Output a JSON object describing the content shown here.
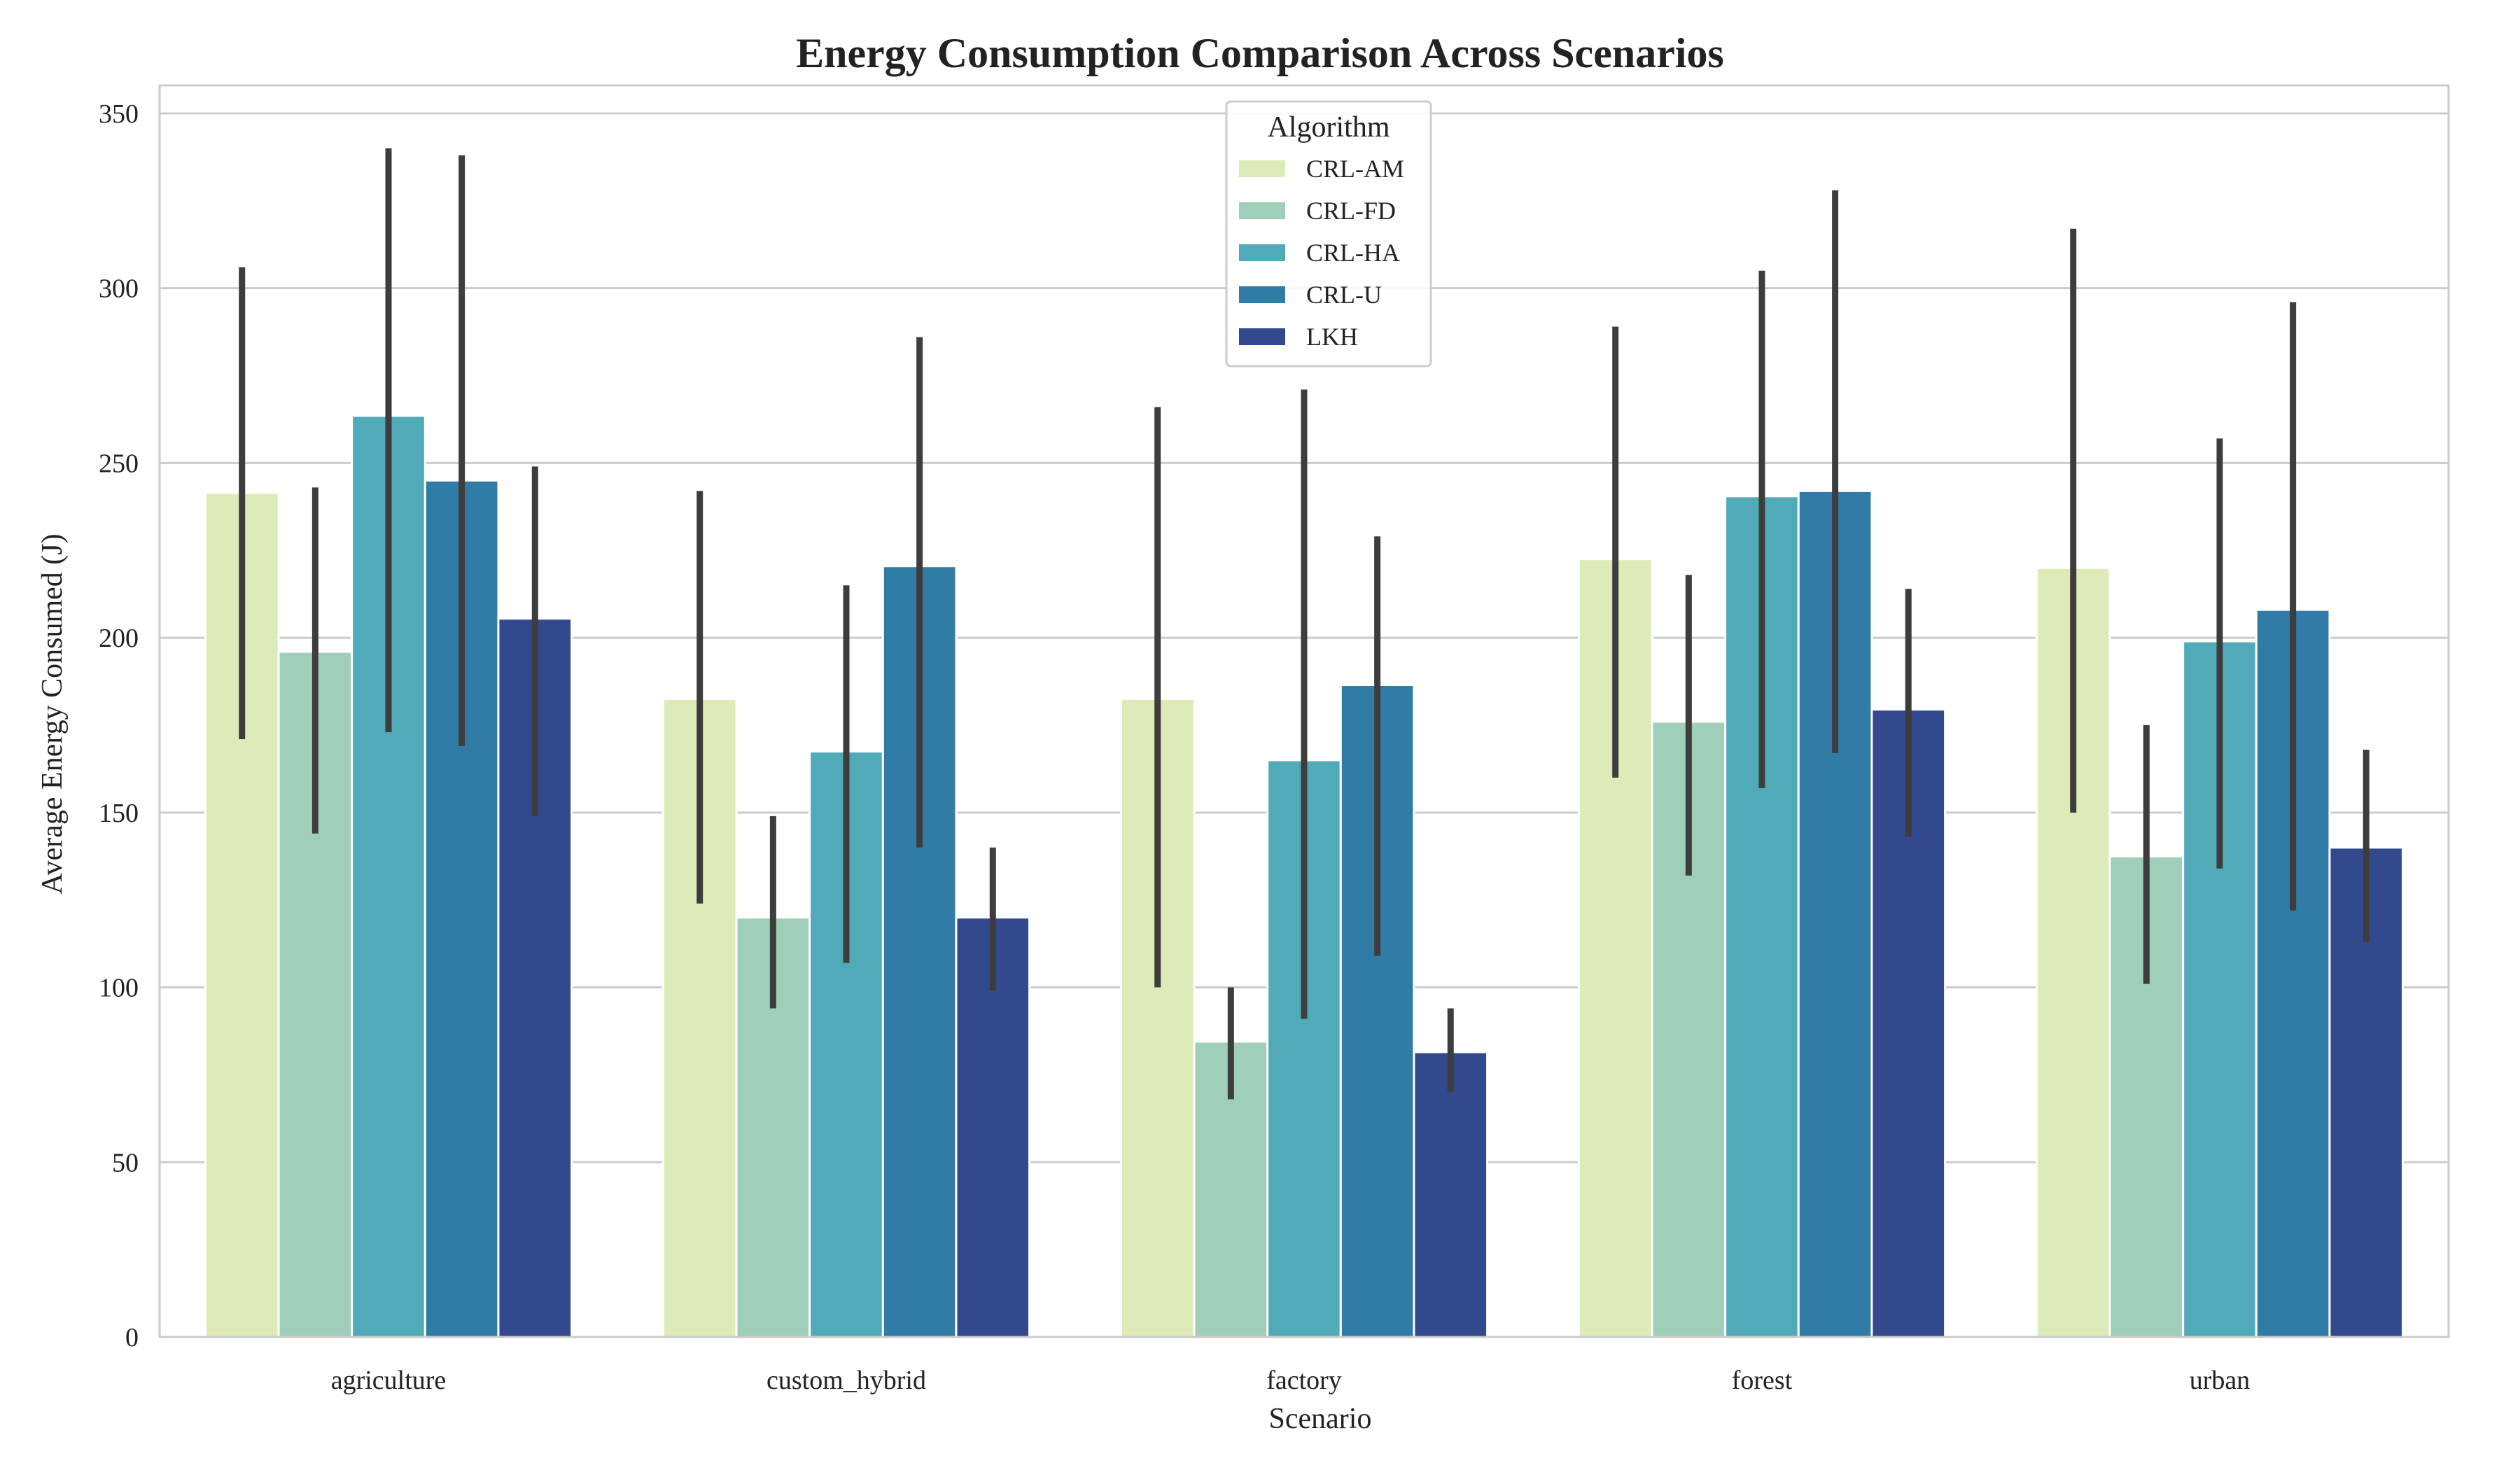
{
  "chart_data": {
    "type": "bar",
    "title": "Energy Consumption Comparison Across Scenarios",
    "xlabel": "Scenario",
    "ylabel": "Average Energy Consumed (J)",
    "ylim": [
      0,
      358
    ],
    "yticks": [
      0,
      50,
      100,
      150,
      200,
      250,
      300,
      350
    ],
    "grid": true,
    "legend": {
      "title": "Algorithm",
      "placement": "top-center"
    },
    "categories": [
      "agriculture",
      "custom_hybrid",
      "factory",
      "forest",
      "urban"
    ],
    "series": [
      {
        "name": "CRL-AM",
        "color": "#dcebb8",
        "values": [
          241.5,
          182.5,
          182.5,
          222.5,
          220
        ],
        "err_low": [
          171,
          124,
          100,
          160,
          150
        ],
        "err_high": [
          306,
          242,
          266,
          289,
          317
        ]
      },
      {
        "name": "CRL-FD",
        "color": "#9fcfb8",
        "values": [
          196,
          120,
          84.5,
          176,
          137.5
        ],
        "err_low": [
          144,
          94,
          68,
          132,
          101
        ],
        "err_high": [
          243,
          149,
          100,
          218,
          175
        ]
      },
      {
        "name": "CRL-HA",
        "color": "#50aab7",
        "values": [
          263.5,
          167.5,
          165,
          240.5,
          199
        ],
        "err_low": [
          173,
          107,
          91,
          157,
          134
        ],
        "err_high": [
          340,
          215,
          271,
          305,
          257
        ]
      },
      {
        "name": "CRL-U",
        "color": "#317ca7",
        "values": [
          245,
          220.5,
          186.5,
          242,
          208
        ],
        "err_low": [
          169,
          140,
          109,
          167,
          122
        ],
        "err_high": [
          338,
          286,
          229,
          328,
          296
        ]
      },
      {
        "name": "LKH",
        "color": "#33498d",
        "values": [
          205.5,
          120,
          81.5,
          179.5,
          140
        ],
        "err_low": [
          149,
          99,
          70,
          143,
          113
        ],
        "err_high": [
          249,
          140,
          94,
          214,
          168
        ]
      }
    ]
  }
}
